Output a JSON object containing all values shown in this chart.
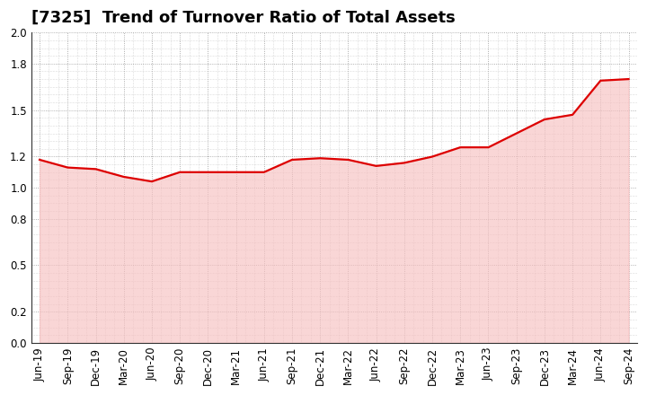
{
  "title": "[7325]  Trend of Turnover Ratio of Total Assets",
  "xlabels": [
    "Jun-19",
    "Sep-19",
    "Dec-19",
    "Mar-20",
    "Jun-20",
    "Sep-20",
    "Dec-20",
    "Mar-21",
    "Jun-21",
    "Sep-21",
    "Dec-21",
    "Mar-22",
    "Jun-22",
    "Sep-22",
    "Dec-22",
    "Mar-23",
    "Jun-23",
    "Sep-23",
    "Dec-23",
    "Mar-24",
    "Jun-24",
    "Sep-24"
  ],
  "values": [
    1.18,
    1.13,
    1.12,
    1.07,
    1.04,
    1.1,
    1.1,
    1.1,
    1.1,
    1.18,
    1.19,
    1.18,
    1.14,
    1.16,
    1.2,
    1.26,
    1.26,
    1.35,
    1.44,
    1.47,
    1.69,
    1.7
  ],
  "line_color": "#dd0000",
  "fill_color": "#f7c0c0",
  "ylim": [
    0.0,
    2.0
  ],
  "yticks": [
    0.0,
    0.2,
    0.5,
    0.8,
    1.0,
    1.2,
    1.5,
    1.8,
    2.0
  ],
  "background_color": "#ffffff",
  "grid_color": "#999999",
  "title_fontsize": 13,
  "tick_fontsize": 8.5
}
